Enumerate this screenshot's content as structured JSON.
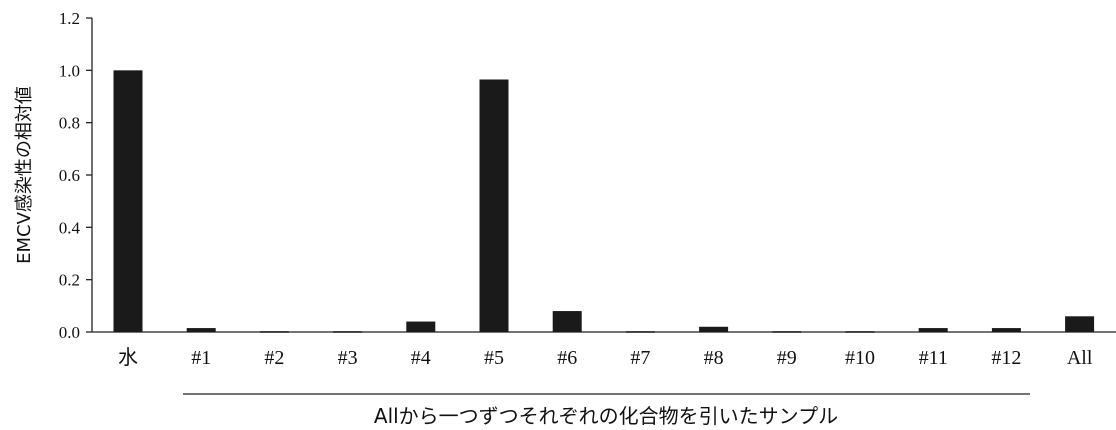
{
  "chart_data": {
    "type": "bar",
    "categories": [
      "水",
      "#1",
      "#2",
      "#3",
      "#4",
      "#5",
      "#6",
      "#7",
      "#8",
      "#9",
      "#10",
      "#11",
      "#12",
      "All"
    ],
    "values": [
      1.0,
      0.015,
      0.003,
      0.003,
      0.04,
      0.965,
      0.08,
      0.003,
      0.02,
      0.003,
      0.003,
      0.015,
      0.015,
      0.06
    ],
    "ylabel": "EMCV感染性の相対値",
    "ylim": [
      0,
      1.2
    ],
    "yticks": [
      "0.0",
      "0.2",
      "0.4",
      "0.6",
      "0.8",
      "1.0",
      "1.2"
    ],
    "group_label": "Allから一つずつそれぞれの化合物を引いたサンプル",
    "grid": false,
    "bar_color": "#1a1a1a"
  }
}
